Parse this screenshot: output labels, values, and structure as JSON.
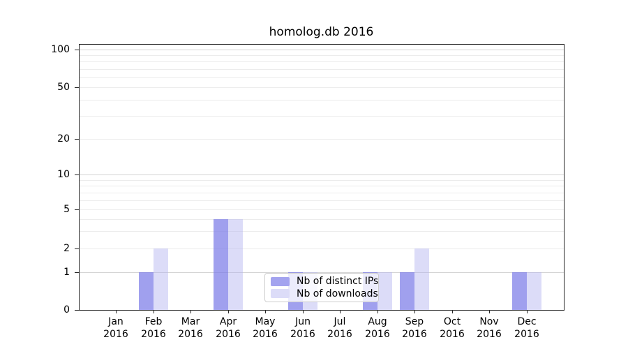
{
  "chart_data": {
    "type": "bar",
    "title": "homolog.db 2016",
    "categories": [
      "Jan",
      "Feb",
      "Mar",
      "Apr",
      "May",
      "Jun",
      "Jul",
      "Aug",
      "Sep",
      "Oct",
      "Nov",
      "Dec"
    ],
    "category_year": "2016",
    "series": [
      {
        "name": "Nb of distinct IPs",
        "color": "rgba(123,123,232,0.72)",
        "legend_color": "#a3a3ef",
        "values": [
          0,
          1,
          0,
          4,
          0,
          1,
          0,
          1,
          1,
          0,
          0,
          1
        ]
      },
      {
        "name": "Nb of downloads",
        "color": "rgba(178,178,240,0.45)",
        "legend_color": "#dcdcf8",
        "values": [
          0,
          2,
          0,
          4,
          0,
          1,
          0,
          1,
          2,
          0,
          0,
          1
        ]
      }
    ],
    "xlabel": "",
    "ylabel": "",
    "y_ticks": [
      0,
      1,
      2,
      5,
      10,
      20,
      50,
      100
    ],
    "y_minor_gridlines": [
      3,
      4,
      6,
      7,
      8,
      9,
      30,
      40,
      60,
      70,
      80,
      90
    ],
    "y_scale": "symlog",
    "ylim": [
      0,
      100
    ],
    "legend_position": "lower center",
    "grid": true
  },
  "colors": {
    "major_grid": "#d4d4d4",
    "minor_grid": "#ececec",
    "spine": "#262626",
    "text": "#000000",
    "legend_border": "#cccccc",
    "legend_bg": "rgba(255,255,255,0.8)"
  }
}
